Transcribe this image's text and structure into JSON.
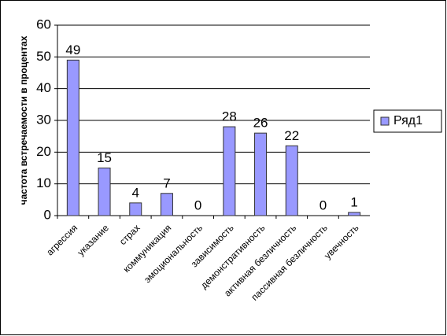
{
  "chart_data": {
    "type": "bar",
    "y_label": "частота встречаемости в процентах",
    "categories": [
      "агрессия",
      "указание",
      "страх",
      "коммуникация",
      "эмоциональность",
      "зависимость",
      "демонстративность",
      "активная безличность",
      "пассивная безличность",
      "увечность"
    ],
    "series": [
      {
        "name": "Ряд1",
        "color": "#9999ff",
        "values": [
          49,
          15,
          4,
          7,
          0,
          28,
          26,
          22,
          0,
          1
        ]
      }
    ],
    "ylim": [
      0,
      60
    ],
    "yticks": [
      0,
      10,
      20,
      30,
      40,
      50,
      60
    ],
    "grid": true,
    "legend": "right"
  }
}
